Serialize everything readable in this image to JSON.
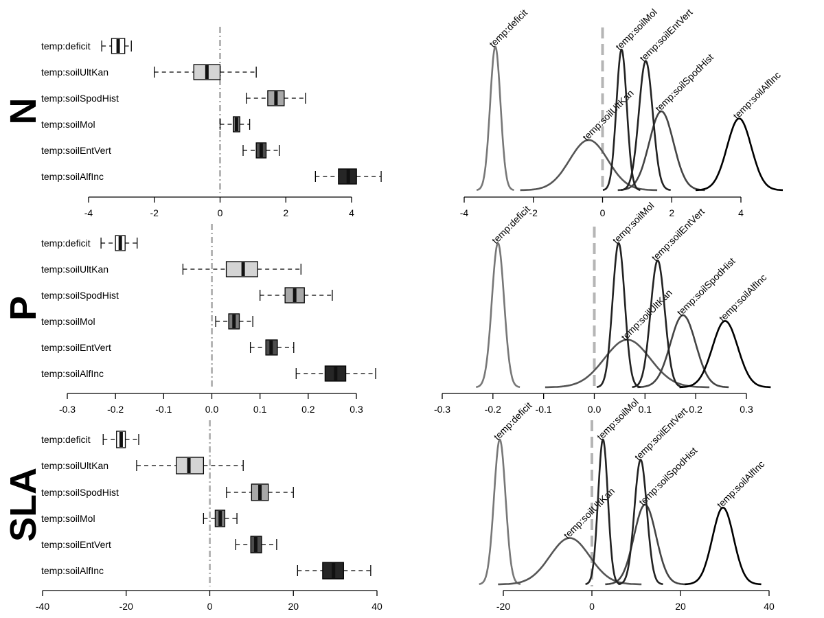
{
  "chart_data": [
    {
      "panel": "N",
      "type": "box",
      "title": "N",
      "xticks": [
        -4,
        -2,
        0,
        2,
        4
      ],
      "xlim": [
        -4,
        4
      ],
      "reference_line": 0,
      "series": [
        {
          "name": "temp:deficit",
          "color": "#ffffff",
          "whisker_low": -3.6,
          "q1": -3.3,
          "median": -3.1,
          "q3": -2.9,
          "whisker_high": -2.7
        },
        {
          "name": "temp:soilUltKan",
          "color": "#d4d4d4",
          "whisker_low": -2.0,
          "q1": -0.8,
          "median": -0.4,
          "q3": 0.0,
          "whisker_high": 1.1
        },
        {
          "name": "temp:soilSpodHist",
          "color": "#a8a8a8",
          "whisker_low": 0.8,
          "q1": 1.45,
          "median": 1.7,
          "q3": 1.95,
          "whisker_high": 2.6
        },
        {
          "name": "temp:soilMol",
          "color": "#7c7c7c",
          "whisker_low": 0.0,
          "q1": 0.4,
          "median": 0.5,
          "q3": 0.6,
          "whisker_high": 0.9
        },
        {
          "name": "temp:soilEntVert",
          "color": "#4d4d4d",
          "whisker_low": 0.7,
          "q1": 1.1,
          "median": 1.25,
          "q3": 1.4,
          "whisker_high": 1.8
        },
        {
          "name": "temp:soilAlfInc",
          "color": "#262626",
          "whisker_low": 2.9,
          "q1": 3.6,
          "median": 3.9,
          "q3": 4.15,
          "whisker_high": 4.9
        }
      ]
    },
    {
      "panel": "N",
      "type": "density",
      "xticks": [
        -4,
        -2,
        0,
        2,
        4
      ],
      "xlim": [
        -4,
        4
      ],
      "reference_line": 0,
      "series": [
        {
          "name": "temp:deficit",
          "color": "#777777",
          "mean": -3.1,
          "sd": 0.15,
          "height": 1.0
        },
        {
          "name": "temp:soilUltKan",
          "color": "#555555",
          "mean": -0.4,
          "sd": 0.55,
          "height": 0.35
        },
        {
          "name": "temp:soilSpodHist",
          "color": "#444444",
          "mean": 1.7,
          "sd": 0.35,
          "height": 0.55
        },
        {
          "name": "temp:soilMol",
          "color": "#222222",
          "mean": 0.55,
          "sd": 0.15,
          "height": 0.98
        },
        {
          "name": "temp:soilEntVert",
          "color": "#222222",
          "mean": 1.25,
          "sd": 0.2,
          "height": 0.9
        },
        {
          "name": "temp:soilAlfInc",
          "color": "#000000",
          "mean": 3.95,
          "sd": 0.35,
          "height": 0.5
        }
      ]
    },
    {
      "panel": "P",
      "type": "box",
      "title": "P",
      "xticks": [
        -0.3,
        -0.2,
        -0.1,
        0.0,
        0.1,
        0.2,
        0.3
      ],
      "xlim": [
        -0.3,
        0.3
      ],
      "reference_line": 0,
      "series": [
        {
          "name": "temp:deficit",
          "color": "#ffffff",
          "whisker_low": -0.23,
          "q1": -0.2,
          "median": -0.19,
          "q3": -0.18,
          "whisker_high": -0.155
        },
        {
          "name": "temp:soilUltKan",
          "color": "#d4d4d4",
          "whisker_low": -0.06,
          "q1": 0.03,
          "median": 0.065,
          "q3": 0.095,
          "whisker_high": 0.185
        },
        {
          "name": "temp:soilSpodHist",
          "color": "#a8a8a8",
          "whisker_low": 0.1,
          "q1": 0.152,
          "median": 0.172,
          "q3": 0.192,
          "whisker_high": 0.25
        },
        {
          "name": "temp:soilMol",
          "color": "#7c7c7c",
          "whisker_low": 0.008,
          "q1": 0.035,
          "median": 0.046,
          "q3": 0.057,
          "whisker_high": 0.085
        },
        {
          "name": "temp:soilEntVert",
          "color": "#4d4d4d",
          "whisker_low": 0.08,
          "q1": 0.112,
          "median": 0.123,
          "q3": 0.136,
          "whisker_high": 0.17
        },
        {
          "name": "temp:soilAlfInc",
          "color": "#262626",
          "whisker_low": 0.175,
          "q1": 0.235,
          "median": 0.257,
          "q3": 0.278,
          "whisker_high": 0.34
        }
      ]
    },
    {
      "panel": "P",
      "type": "density",
      "xticks": [
        -0.3,
        -0.2,
        -0.1,
        0.0,
        0.1,
        0.2,
        0.3
      ],
      "xlim": [
        -0.3,
        0.3
      ],
      "reference_line": 0,
      "series": [
        {
          "name": "temp:deficit",
          "color": "#777777",
          "mean": -0.19,
          "sd": 0.012,
          "height": 1.0
        },
        {
          "name": "temp:soilUltKan",
          "color": "#555555",
          "mean": 0.065,
          "sd": 0.045,
          "height": 0.33
        },
        {
          "name": "temp:soilSpodHist",
          "color": "#444444",
          "mean": 0.175,
          "sd": 0.025,
          "height": 0.5
        },
        {
          "name": "temp:soilMol",
          "color": "#222222",
          "mean": 0.048,
          "sd": 0.012,
          "height": 1.0
        },
        {
          "name": "temp:soilEntVert",
          "color": "#222222",
          "mean": 0.125,
          "sd": 0.014,
          "height": 0.88
        },
        {
          "name": "temp:soilAlfInc",
          "color": "#000000",
          "mean": 0.258,
          "sd": 0.025,
          "height": 0.46
        }
      ]
    },
    {
      "panel": "SLA",
      "type": "box",
      "title": "SLA",
      "xticks": [
        -40,
        -20,
        0,
        20,
        40
      ],
      "xlim": [
        -40,
        40
      ],
      "reference_line": 0,
      "series": [
        {
          "name": "temp:deficit",
          "color": "#ffffff",
          "whisker_low": -25.5,
          "q1": -22.3,
          "median": -21.2,
          "q3": -20.2,
          "whisker_high": -17
        },
        {
          "name": "temp:soilUltKan",
          "color": "#d4d4d4",
          "whisker_low": -17.5,
          "q1": -8,
          "median": -5,
          "q3": -1.5,
          "whisker_high": 8
        },
        {
          "name": "temp:soilSpodHist",
          "color": "#a8a8a8",
          "whisker_low": 4,
          "q1": 10,
          "median": 12,
          "q3": 14,
          "whisker_high": 20
        },
        {
          "name": "temp:soilMol",
          "color": "#7c7c7c",
          "whisker_low": -1.5,
          "q1": 1.3,
          "median": 2.5,
          "q3": 3.6,
          "whisker_high": 6.5
        },
        {
          "name": "temp:soilEntVert",
          "color": "#4d4d4d",
          "whisker_low": 6.2,
          "q1": 9.8,
          "median": 11,
          "q3": 12.4,
          "whisker_high": 16
        },
        {
          "name": "temp:soilAlfInc",
          "color": "#262626",
          "whisker_low": 21,
          "q1": 27,
          "median": 29.6,
          "q3": 32,
          "whisker_high": 38.5
        }
      ]
    },
    {
      "panel": "SLA",
      "type": "density",
      "xticks": [
        -20,
        0,
        20,
        40
      ],
      "xlim": [
        -30,
        40
      ],
      "reference_line": 0,
      "series": [
        {
          "name": "temp:deficit",
          "color": "#777777",
          "mean": -20.8,
          "sd": 1.3,
          "height": 1.0
        },
        {
          "name": "temp:soilUltKan",
          "color": "#555555",
          "mean": -5,
          "sd": 4.5,
          "height": 0.32
        },
        {
          "name": "temp:soilSpodHist",
          "color": "#444444",
          "mean": 12,
          "sd": 2.5,
          "height": 0.55
        },
        {
          "name": "temp:soilMol",
          "color": "#222222",
          "mean": 2.5,
          "sd": 1.1,
          "height": 1.0
        },
        {
          "name": "temp:soilEntVert",
          "color": "#222222",
          "mean": 11,
          "sd": 1.4,
          "height": 0.86
        },
        {
          "name": "temp:soilAlfInc",
          "color": "#000000",
          "mean": 29.6,
          "sd": 2.4,
          "height": 0.53
        }
      ]
    }
  ]
}
